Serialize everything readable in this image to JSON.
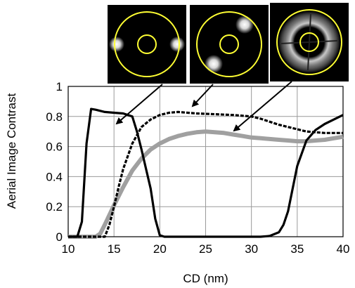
{
  "chart_data": {
    "type": "line",
    "title": "",
    "xlabel": "CD (nm)",
    "ylabel": "Aerial Image Contrast",
    "xlim": [
      10,
      40
    ],
    "ylim": [
      0,
      1
    ],
    "x_ticks": [
      "10",
      "15",
      "20",
      "25",
      "30",
      "35",
      "40"
    ],
    "y_ticks": [
      "0",
      "0.2",
      "0.4",
      "0.6",
      "0.8",
      "1"
    ],
    "grid": true,
    "legend": "none",
    "series": [
      {
        "style": "solid-black",
        "color": "#000000",
        "illumination": "dipole",
        "points": [
          [
            10,
            0
          ],
          [
            11,
            0
          ],
          [
            11.5,
            0.1
          ],
          [
            12,
            0.62
          ],
          [
            12.5,
            0.85
          ],
          [
            13,
            0.845
          ],
          [
            14,
            0.83
          ],
          [
            15,
            0.825
          ],
          [
            16,
            0.82
          ],
          [
            17,
            0.8
          ],
          [
            17.5,
            0.7
          ],
          [
            18,
            0.58
          ],
          [
            18.5,
            0.45
          ],
          [
            19,
            0.32
          ],
          [
            19.5,
            0.12
          ],
          [
            20,
            0.01
          ],
          [
            20.5,
            0
          ],
          [
            22,
            0
          ],
          [
            24,
            0
          ],
          [
            26,
            0
          ],
          [
            28,
            0
          ],
          [
            30,
            0
          ],
          [
            31,
            0
          ],
          [
            32,
            0.005
          ],
          [
            33,
            0.03
          ],
          [
            33.5,
            0.08
          ],
          [
            34,
            0.17
          ],
          [
            34.5,
            0.32
          ],
          [
            35,
            0.47
          ],
          [
            36,
            0.64
          ],
          [
            37,
            0.71
          ],
          [
            38,
            0.75
          ],
          [
            39,
            0.78
          ],
          [
            40,
            0.81
          ]
        ]
      },
      {
        "style": "dashed-black",
        "color": "#000000",
        "illumination": "quadrupole",
        "points": [
          [
            10,
            0
          ],
          [
            12,
            0
          ],
          [
            13,
            0
          ],
          [
            14,
            0
          ],
          [
            14.5,
            0.08
          ],
          [
            15,
            0.2
          ],
          [
            15.5,
            0.33
          ],
          [
            16,
            0.45
          ],
          [
            17,
            0.62
          ],
          [
            18,
            0.73
          ],
          [
            19,
            0.78
          ],
          [
            20,
            0.81
          ],
          [
            21,
            0.825
          ],
          [
            22,
            0.83
          ],
          [
            24,
            0.82
          ],
          [
            26,
            0.815
          ],
          [
            28,
            0.81
          ],
          [
            30,
            0.8
          ],
          [
            31,
            0.785
          ],
          [
            32,
            0.765
          ],
          [
            33,
            0.745
          ],
          [
            34,
            0.73
          ],
          [
            35,
            0.715
          ],
          [
            36,
            0.7
          ],
          [
            37,
            0.695
          ],
          [
            38,
            0.69
          ],
          [
            39,
            0.69
          ],
          [
            40,
            0.69
          ]
        ]
      },
      {
        "style": "thick-gray",
        "color": "#a0a0a0",
        "illumination": "annular",
        "points": [
          [
            10,
            0
          ],
          [
            12,
            0
          ],
          [
            13,
            0
          ],
          [
            13.5,
            0.02
          ],
          [
            14,
            0.08
          ],
          [
            15,
            0.21
          ],
          [
            16,
            0.33
          ],
          [
            17,
            0.44
          ],
          [
            18,
            0.52
          ],
          [
            19,
            0.58
          ],
          [
            20,
            0.62
          ],
          [
            21,
            0.65
          ],
          [
            22,
            0.67
          ],
          [
            23,
            0.685
          ],
          [
            24,
            0.695
          ],
          [
            25,
            0.7
          ],
          [
            26,
            0.695
          ],
          [
            27,
            0.69
          ],
          [
            28,
            0.68
          ],
          [
            29,
            0.67
          ],
          [
            30,
            0.66
          ],
          [
            31,
            0.655
          ],
          [
            32,
            0.65
          ],
          [
            33,
            0.645
          ],
          [
            34,
            0.64
          ],
          [
            35,
            0.635
          ],
          [
            36,
            0.635
          ],
          [
            37,
            0.64
          ],
          [
            38,
            0.645
          ],
          [
            39,
            0.655
          ],
          [
            40,
            0.665
          ]
        ]
      }
    ],
    "pupil_insets": [
      {
        "illumination": "dipole",
        "points_to_x": 15
      },
      {
        "illumination": "quadrupole",
        "points_to_x": 20
      },
      {
        "illumination": "annular",
        "points_to_x": 26.5
      }
    ]
  }
}
